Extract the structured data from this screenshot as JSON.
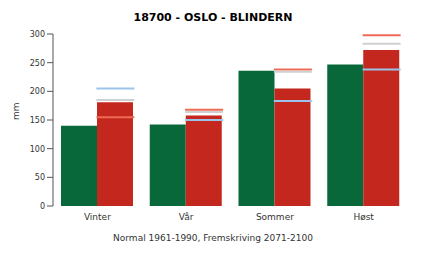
{
  "chart_data": {
    "type": "bar",
    "title": "18700 - OSLO - BLINDERN",
    "y_label": "mm",
    "x_label": "Normal 1961-1990, Fremskriving 2071-2100",
    "categories": [
      "Vinter",
      "Vår",
      "Sommer",
      "Høst"
    ],
    "series": [
      {
        "type": "bar",
        "color": "#08683a",
        "values": [
          140,
          142,
          236,
          247
        ]
      },
      {
        "type": "bar",
        "color": "#c4271d",
        "values": [
          181,
          158,
          205,
          272
        ]
      },
      {
        "type": "scatter",
        "marker": "hline",
        "color": "#9cc3ea",
        "values": [
          205,
          150,
          183,
          238
        ]
      },
      {
        "type": "scatter",
        "marker": "hline",
        "color": "#ef6a55",
        "values": [
          155,
          168,
          238,
          298
        ]
      },
      {
        "type": "scatter",
        "marker": "hline",
        "color": "#d0d0d0",
        "values": [
          185,
          164,
          234,
          283
        ]
      }
    ],
    "ylim": [
      0,
      300
    ],
    "yticks": [
      0,
      50,
      100,
      150,
      200,
      250,
      300
    ],
    "grid": false
  }
}
